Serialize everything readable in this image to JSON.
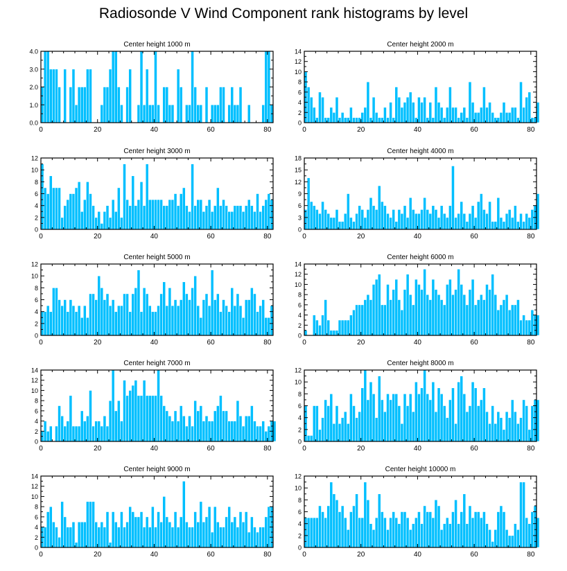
{
  "title": "Radiosonde V Wind Component rank histograms by level",
  "colors": {
    "bar": "#00BFFF",
    "bar_stroke": "#ffffff",
    "axis": "#000000"
  },
  "chart_data": [
    {
      "type": "bar",
      "title": "Center height 1000 m",
      "x_start": 0,
      "xlim": [
        0,
        82
      ],
      "ylim": [
        0,
        4
      ],
      "xticks": [
        0,
        20,
        40,
        60,
        80
      ],
      "xtick_labels": [
        "0",
        "20",
        "40",
        "60",
        "80"
      ],
      "yticks": [
        0,
        1,
        2,
        3,
        4
      ],
      "ytick_labels": [
        "0.0",
        "1.0",
        "2.0",
        "3.0",
        "4.0"
      ],
      "values": [
        2,
        4,
        4,
        3,
        3,
        3,
        2,
        0,
        3,
        0,
        2,
        3,
        1,
        2,
        2,
        2,
        3,
        3,
        0,
        0,
        0,
        1,
        2,
        2,
        3,
        4,
        4,
        2,
        1,
        0,
        2,
        3,
        0,
        0,
        1,
        4,
        1,
        3,
        1,
        1,
        4,
        1,
        0,
        2,
        2,
        1,
        1,
        0,
        3,
        2,
        0,
        1,
        1,
        4,
        2,
        1,
        1,
        0,
        2,
        0,
        1,
        1,
        1,
        2,
        2,
        0,
        1,
        2,
        1,
        1,
        2,
        0,
        0,
        1,
        0,
        0,
        0,
        0,
        1,
        4,
        4,
        1
      ]
    },
    {
      "type": "bar",
      "title": "Center height 2000 m",
      "x_start": 0,
      "xlim": [
        0,
        82
      ],
      "ylim": [
        0,
        14
      ],
      "xticks": [
        0,
        20,
        40,
        60,
        80
      ],
      "xtick_labels": [
        "0",
        "20",
        "40",
        "60",
        "80"
      ],
      "yticks": [
        0,
        2,
        4,
        6,
        8,
        10,
        12,
        14
      ],
      "ytick_labels": [
        "0",
        "2",
        "4",
        "6",
        "8",
        "10",
        "12",
        "14"
      ],
      "values": [
        10,
        7,
        5,
        3,
        1,
        6,
        5,
        1,
        1,
        3,
        2,
        5,
        1,
        2,
        1,
        1,
        3,
        1,
        1,
        1,
        2,
        3,
        8,
        1,
        5,
        2,
        1,
        1,
        3,
        1,
        4,
        1,
        7,
        5,
        3,
        4,
        5,
        6,
        4,
        1,
        5,
        4,
        5,
        1,
        4,
        1,
        7,
        4,
        3,
        1,
        3,
        7,
        3,
        3,
        1,
        2,
        3,
        1,
        8,
        4,
        2,
        2,
        3,
        7,
        3,
        4,
        2,
        1,
        1,
        2,
        4,
        2,
        2,
        3,
        3,
        1,
        8,
        3,
        5,
        6,
        1,
        1,
        4
      ]
    },
    {
      "type": "bar",
      "title": "Center height 3000 m",
      "x_start": 0,
      "xlim": [
        0,
        82
      ],
      "ylim": [
        0,
        12
      ],
      "xticks": [
        0,
        20,
        40,
        60,
        80
      ],
      "xtick_labels": [
        "0",
        "20",
        "40",
        "60",
        "80"
      ],
      "yticks": [
        0,
        2,
        4,
        6,
        8,
        10,
        12
      ],
      "ytick_labels": [
        "0",
        "2",
        "4",
        "6",
        "8",
        "10",
        "12"
      ],
      "values": [
        11,
        7,
        6,
        9,
        7,
        7,
        7,
        2,
        4,
        5,
        6,
        6,
        7,
        8,
        3,
        5,
        8,
        6,
        4,
        2,
        3,
        1,
        3,
        4,
        2,
        5,
        3,
        7,
        2,
        11,
        5,
        4,
        9,
        4,
        5,
        8,
        4,
        11,
        5,
        5,
        5,
        5,
        5,
        4,
        4,
        5,
        5,
        6,
        4,
        6,
        7,
        4,
        3,
        11,
        4,
        5,
        5,
        3,
        4,
        5,
        3,
        4,
        7,
        4,
        5,
        4,
        3,
        3,
        4,
        4,
        4,
        3,
        4,
        5,
        4,
        3,
        6,
        3,
        4,
        5,
        6,
        5
      ]
    },
    {
      "type": "bar",
      "title": "Center height 4000 m",
      "x_start": 0,
      "xlim": [
        0,
        82
      ],
      "ylim": [
        0,
        18
      ],
      "xticks": [
        0,
        20,
        40,
        60,
        80
      ],
      "xtick_labels": [
        "0",
        "20",
        "40",
        "60",
        "80"
      ],
      "yticks": [
        0,
        3,
        6,
        9,
        12,
        15,
        18
      ],
      "ytick_labels": [
        "0",
        "3",
        "6",
        "9",
        "12",
        "15",
        "18"
      ],
      "values": [
        5,
        13,
        7,
        6,
        5,
        4,
        7,
        5,
        4,
        3,
        3,
        5,
        2,
        2,
        4,
        9,
        3,
        2,
        4,
        6,
        5,
        3,
        5,
        8,
        6,
        5,
        11,
        7,
        6,
        4,
        3,
        5,
        2,
        5,
        4,
        6,
        3,
        8,
        5,
        4,
        4,
        5,
        8,
        5,
        4,
        6,
        5,
        3,
        6,
        4,
        3,
        6,
        16,
        3,
        4,
        7,
        4,
        2,
        4,
        6,
        3,
        7,
        9,
        5,
        4,
        7,
        2,
        2,
        8,
        3,
        2,
        4,
        5,
        3,
        6,
        2,
        4,
        2,
        4,
        3,
        5,
        6,
        9
      ]
    },
    {
      "type": "bar",
      "title": "Center height 5000 m",
      "x_start": 0,
      "xlim": [
        0,
        82
      ],
      "ylim": [
        0,
        12
      ],
      "xticks": [
        0,
        20,
        40,
        60,
        80
      ],
      "xtick_labels": [
        "0",
        "20",
        "40",
        "60",
        "80"
      ],
      "yticks": [
        0,
        2,
        4,
        6,
        8,
        10,
        12
      ],
      "ytick_labels": [
        "0",
        "2",
        "4",
        "6",
        "8",
        "10",
        "12"
      ],
      "values": [
        4,
        4,
        5,
        4,
        8,
        8,
        6,
        5,
        6,
        4,
        6,
        5,
        4,
        5,
        3,
        5,
        3,
        7,
        7,
        6,
        10,
        8,
        6,
        7,
        5,
        6,
        4,
        5,
        5,
        7,
        7,
        4,
        7,
        8,
        11,
        4,
        8,
        7,
        5,
        4,
        4,
        5,
        7,
        9,
        5,
        8,
        5,
        6,
        5,
        6,
        9,
        7,
        6,
        8,
        10,
        5,
        3,
        6,
        7,
        5,
        11,
        6,
        7,
        4,
        6,
        5,
        4,
        8,
        5,
        7,
        5,
        3,
        6,
        6,
        8,
        7,
        4,
        5,
        6,
        3,
        3,
        5
      ]
    },
    {
      "type": "bar",
      "title": "Center height 6000 m",
      "x_start": 0,
      "xlim": [
        0,
        82
      ],
      "ylim": [
        0,
        14
      ],
      "xticks": [
        0,
        20,
        40,
        60,
        80
      ],
      "xtick_labels": [
        "0",
        "20",
        "40",
        "60",
        "80"
      ],
      "yticks": [
        0,
        2,
        4,
        6,
        8,
        10,
        12,
        14
      ],
      "ytick_labels": [
        "0",
        "2",
        "4",
        "6",
        "8",
        "10",
        "12",
        "14"
      ],
      "values": [
        1,
        0,
        0,
        4,
        3,
        2,
        4,
        7,
        3,
        1,
        1,
        1,
        3,
        3,
        3,
        3,
        4,
        5,
        6,
        6,
        6,
        7,
        8,
        7,
        10,
        11,
        12,
        6,
        6,
        10,
        7,
        9,
        11,
        7,
        5,
        9,
        12,
        8,
        6,
        11,
        10,
        9,
        13,
        8,
        7,
        11,
        9,
        8,
        7,
        6,
        10,
        11,
        8,
        9,
        13,
        10,
        8,
        6,
        9,
        11,
        6,
        7,
        8,
        7,
        10,
        9,
        12,
        8,
        5,
        6,
        7,
        8,
        5,
        6,
        6,
        7,
        3,
        4,
        3,
        3,
        5,
        4,
        4
      ]
    },
    {
      "type": "bar",
      "title": "Center height 7000 m",
      "x_start": 0,
      "xlim": [
        0,
        82
      ],
      "ylim": [
        0,
        14
      ],
      "xticks": [
        0,
        20,
        40,
        60,
        80
      ],
      "xtick_labels": [
        "0",
        "20",
        "40",
        "60",
        "80"
      ],
      "yticks": [
        0,
        2,
        4,
        6,
        8,
        10,
        12,
        14
      ],
      "ytick_labels": [
        "0",
        "2",
        "4",
        "6",
        "8",
        "10",
        "12",
        "14"
      ],
      "values": [
        2,
        4,
        2,
        3,
        0,
        3,
        7,
        5,
        3,
        4,
        9,
        3,
        3,
        3,
        6,
        4,
        5,
        10,
        3,
        4,
        4,
        3,
        5,
        3,
        8,
        14,
        6,
        8,
        4,
        12,
        9,
        10,
        11,
        12,
        9,
        9,
        12,
        9,
        9,
        9,
        9,
        14,
        9,
        7,
        6,
        5,
        4,
        6,
        4,
        7,
        5,
        3,
        5,
        3,
        8,
        6,
        7,
        4,
        5,
        4,
        4,
        6,
        7,
        9,
        6,
        6,
        4,
        4,
        4,
        8,
        5,
        3,
        5,
        5,
        7,
        4,
        3,
        3,
        4,
        2,
        3,
        4,
        4
      ]
    },
    {
      "type": "bar",
      "title": "Center height 8000 m",
      "x_start": 0,
      "xlim": [
        0,
        82
      ],
      "ylim": [
        0,
        12
      ],
      "xticks": [
        0,
        20,
        40,
        60,
        80
      ],
      "xtick_labels": [
        "0",
        "20",
        "40",
        "60",
        "80"
      ],
      "yticks": [
        0,
        2,
        4,
        6,
        8,
        10,
        12
      ],
      "ytick_labels": [
        "0",
        "2",
        "4",
        "6",
        "8",
        "10",
        "12"
      ],
      "values": [
        6,
        1,
        1,
        6,
        6,
        2,
        4,
        7,
        6,
        8,
        3,
        6,
        3,
        4,
        5,
        3,
        8,
        6,
        4,
        5,
        9,
        12,
        7,
        10,
        8,
        4,
        11,
        7,
        5,
        8,
        7,
        8,
        8,
        6,
        3,
        8,
        6,
        8,
        5,
        10,
        8,
        9,
        12,
        8,
        7,
        10,
        5,
        9,
        8,
        6,
        4,
        7,
        9,
        3,
        10,
        11,
        8,
        5,
        6,
        10,
        9,
        6,
        7,
        9,
        5,
        3,
        6,
        3,
        5,
        4,
        2,
        5,
        4,
        7,
        5,
        3,
        4,
        7,
        6,
        2,
        6,
        7,
        7
      ]
    },
    {
      "type": "bar",
      "title": "Center height 9000 m",
      "x_start": 0,
      "xlim": [
        0,
        82
      ],
      "ylim": [
        0,
        14
      ],
      "xticks": [
        0,
        20,
        40,
        60,
        80
      ],
      "xtick_labels": [
        "0",
        "20",
        "40",
        "60",
        "80"
      ],
      "yticks": [
        0,
        2,
        4,
        6,
        8,
        10,
        12,
        14
      ],
      "ytick_labels": [
        "0",
        "2",
        "4",
        "6",
        "8",
        "10",
        "12",
        "14"
      ],
      "values": [
        4,
        4,
        7,
        8,
        5,
        4,
        2,
        9,
        6,
        4,
        4,
        5,
        1,
        5,
        5,
        5,
        9,
        9,
        9,
        5,
        4,
        5,
        4,
        7,
        1,
        7,
        5,
        4,
        7,
        4,
        5,
        8,
        7,
        6,
        6,
        7,
        4,
        6,
        4,
        8,
        4,
        7,
        5,
        10,
        6,
        5,
        4,
        7,
        4,
        6,
        13,
        5,
        4,
        4,
        7,
        5,
        9,
        5,
        6,
        8,
        3,
        8,
        5,
        4,
        4,
        6,
        8,
        5,
        6,
        4,
        7,
        5,
        7,
        3,
        6,
        4,
        3,
        4,
        4,
        6,
        8,
        8
      ]
    },
    {
      "type": "bar",
      "title": "Center height 10000 m",
      "x_start": 0,
      "xlim": [
        0,
        82
      ],
      "ylim": [
        0,
        12
      ],
      "xticks": [
        0,
        20,
        40,
        60,
        80
      ],
      "xtick_labels": [
        "0",
        "20",
        "40",
        "60",
        "80"
      ],
      "yticks": [
        0,
        2,
        4,
        6,
        8,
        10,
        12
      ],
      "ytick_labels": [
        "0",
        "2",
        "4",
        "6",
        "8",
        "10",
        "12"
      ],
      "values": [
        5,
        5,
        5,
        5,
        5,
        7,
        6,
        5,
        7,
        11,
        9,
        8,
        6,
        7,
        5,
        3,
        6,
        7,
        9,
        5,
        5,
        11,
        8,
        4,
        3,
        5,
        9,
        6,
        5,
        3,
        5,
        6,
        5,
        4,
        6,
        6,
        5,
        3,
        4,
        5,
        6,
        4,
        7,
        6,
        6,
        5,
        8,
        7,
        3,
        4,
        5,
        4,
        6,
        8,
        4,
        6,
        9,
        4,
        7,
        5,
        6,
        6,
        5,
        6,
        4,
        3,
        1,
        3,
        6,
        7,
        6,
        3,
        2,
        2,
        4,
        3,
        11,
        11,
        5,
        4,
        6,
        7,
        5
      ]
    }
  ]
}
